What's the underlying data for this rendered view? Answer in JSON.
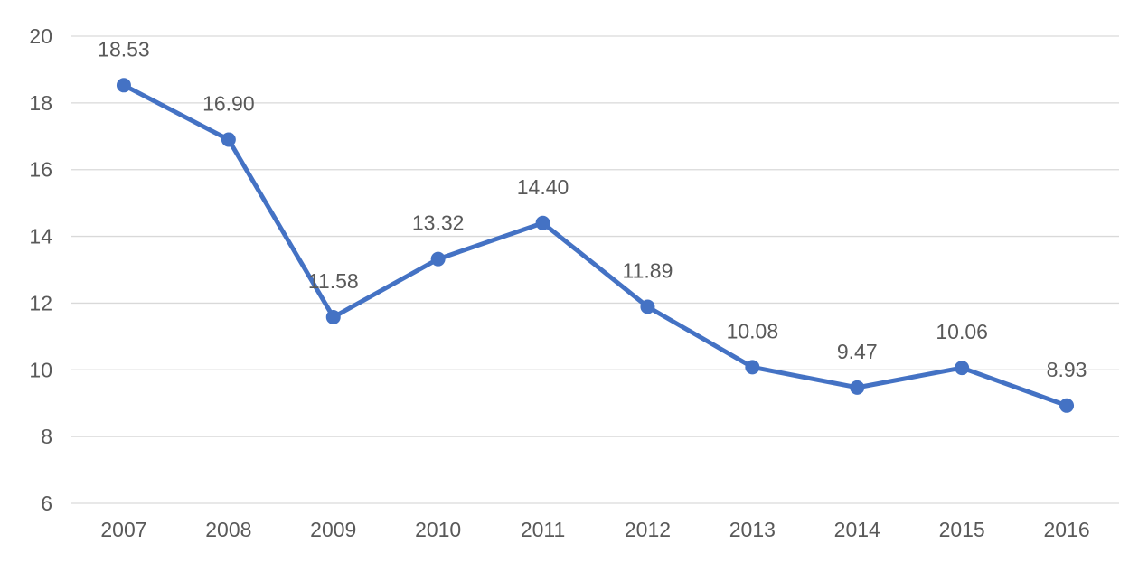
{
  "chart_data": {
    "type": "line",
    "title": "",
    "xlabel": "",
    "ylabel": "",
    "categories": [
      "2007",
      "2008",
      "2009",
      "2010",
      "2011",
      "2012",
      "2013",
      "2014",
      "2015",
      "2016"
    ],
    "series": [
      {
        "values": [
          18.53,
          16.9,
          11.58,
          13.32,
          14.4,
          11.89,
          10.08,
          9.47,
          10.06,
          8.93
        ],
        "labels": [
          "18.53",
          "16.90",
          "11.58",
          "13.32",
          "14.40",
          "11.89",
          "10.08",
          "9.47",
          "10.06",
          "8.93"
        ],
        "color": "#4472c4"
      }
    ],
    "ylim": [
      6,
      20
    ],
    "yticks": [
      "6",
      "8",
      "10",
      "12",
      "14",
      "16",
      "18",
      "20"
    ],
    "grid": true,
    "legend": "none"
  }
}
